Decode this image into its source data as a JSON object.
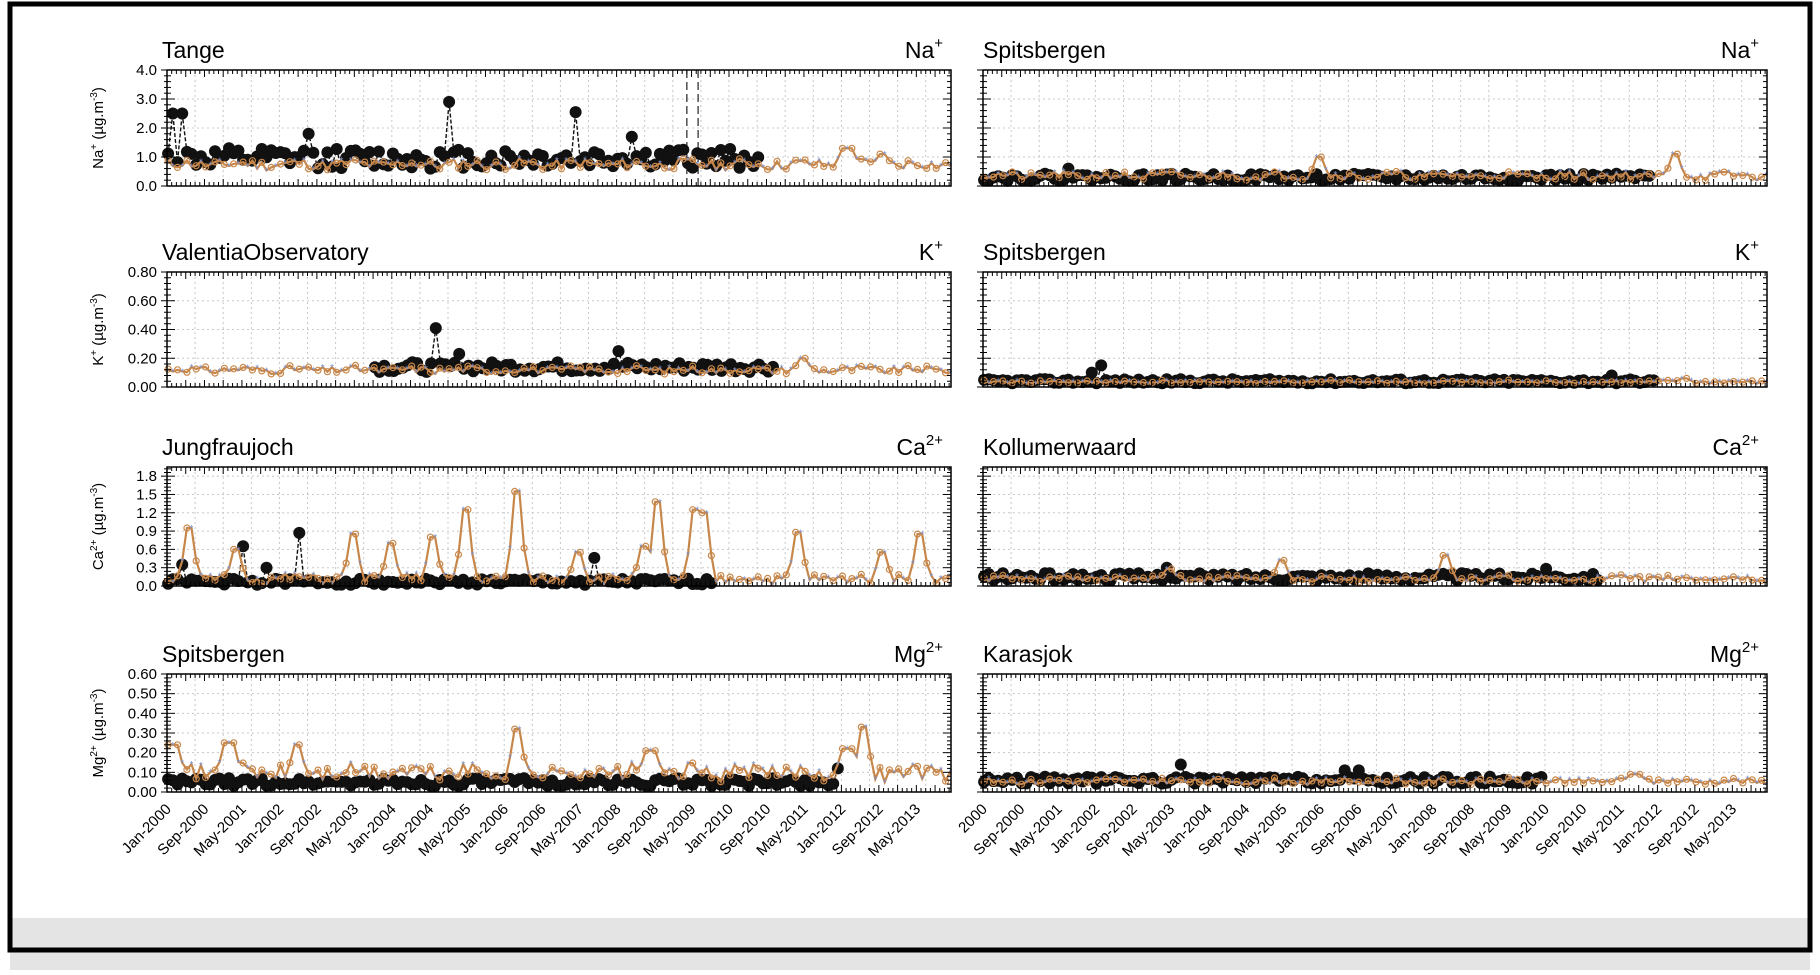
{
  "figure": {
    "x_tick_labels_left": [
      "Jan-2000",
      "Sep-2000",
      "May-2001",
      "Jan-2002",
      "Sep-2002",
      "May-2003",
      "Jan-2004",
      "Sep-2004",
      "May-2005",
      "Jan-2006",
      "Sep-2006",
      "May-2007",
      "Jan-2008",
      "Sep-2008",
      "May-2009",
      "Jan-2010",
      "Sep-2010",
      "May-2011",
      "Jan-2012",
      "Sep-2012",
      "May-2013"
    ],
    "x_tick_labels_right": [
      "2000",
      "Sep-2000",
      "May-2001",
      "Jan-2002",
      "Sep-2002",
      "May-2003",
      "Jan-2004",
      "Sep-2004",
      "May-2005",
      "Jan-2006",
      "Sep-2006",
      "May-2007",
      "Jan-2008",
      "Sep-2008",
      "May-2009",
      "Jan-2010",
      "Sep-2010",
      "May-2011",
      "Jan-2012",
      "Sep-2012",
      "May-2013"
    ],
    "colors": {
      "observed": "#111111",
      "model_line": "#c8874a",
      "model_marker": "#7b8fc9",
      "grid": "#c8c8c8"
    }
  },
  "chart_data": [
    {
      "type": "line",
      "panel": "r1c1",
      "station": "Tange",
      "species_main": "Na",
      "species_sup": "+",
      "ylabel_main": "Na",
      "ylabel_sup": "+",
      "ylabel_unit": " (µg.m",
      "ylabel_unit_sup": "-3",
      "ylabel_close": ")",
      "ylim": [
        0,
        4.0
      ],
      "yticks": [
        0,
        1.0,
        2.0,
        3.0,
        4.0
      ],
      "ytick_labels": [
        "0.0",
        "1.0",
        "2.0",
        "3.0",
        "4.0"
      ],
      "model": {
        "base": 0.75,
        "amp": 0.18,
        "seed": 11,
        "spikes": [
          [
            2012.1,
            1.3
          ],
          [
            2012.7,
            1.1
          ]
        ]
      },
      "observed": {
        "end": 2010.6,
        "base": 0.95,
        "amp": 0.35,
        "seed": 12,
        "spikes": [
          [
            2000.1,
            2.5
          ],
          [
            2000.3,
            2.5
          ],
          [
            2005.0,
            2.9
          ],
          [
            2007.3,
            2.55
          ],
          [
            2002.5,
            1.8
          ],
          [
            2008.3,
            1.7
          ]
        ]
      },
      "vlines": [
        2009.25,
        2009.45
      ]
    },
    {
      "type": "line",
      "panel": "r1c2",
      "station": "Spitsbergen",
      "species_main": "Na",
      "species_sup": "+",
      "ylabel_main": "",
      "ylabel_sup": "",
      "ylabel_unit": "",
      "ylabel_unit_sup": "",
      "ylabel_close": "",
      "ylim": [
        0,
        4.0
      ],
      "yticks": [
        0,
        1.0,
        2.0,
        3.0,
        4.0
      ],
      "ytick_labels": [],
      "model": {
        "base": 0.35,
        "amp": 0.14,
        "seed": 21,
        "spikes": [
          [
            2006.0,
            1.0
          ],
          [
            2012.3,
            1.1
          ]
        ]
      },
      "observed": {
        "end": 2011.9,
        "base": 0.3,
        "amp": 0.12,
        "seed": 22,
        "spikes": [
          [
            2001.5,
            0.6
          ]
        ]
      },
      "vlines": []
    },
    {
      "type": "line",
      "panel": "r2c1",
      "station": "ValentiaObservatory",
      "species_main": "K",
      "species_sup": "+",
      "ylabel_main": "K",
      "ylabel_sup": "+",
      "ylabel_unit": " (µg.m",
      "ylabel_unit_sup": "-3",
      "ylabel_close": ")",
      "ylim": [
        0,
        0.8
      ],
      "yticks": [
        0,
        0.2,
        0.4,
        0.6,
        0.8
      ],
      "ytick_labels": [
        "0.00",
        "0.20",
        "0.40",
        "0.60",
        "0.80"
      ],
      "model": {
        "base": 0.12,
        "amp": 0.025,
        "seed": 31,
        "spikes": [
          [
            2011.3,
            0.2
          ]
        ]
      },
      "observed": {
        "start": 2003.7,
        "end": 2010.8,
        "base": 0.14,
        "amp": 0.035,
        "seed": 32,
        "spikes": [
          [
            2004.8,
            0.41
          ],
          [
            2005.2,
            0.23
          ],
          [
            2008.0,
            0.25
          ]
        ]
      },
      "vlines": []
    },
    {
      "type": "line",
      "panel": "r2c2",
      "station": "Spitsbergen",
      "species_main": "K",
      "species_sup": "+",
      "ylabel_main": "",
      "ylabel_sup": "",
      "ylabel_unit": "",
      "ylabel_unit_sup": "",
      "ylabel_close": "",
      "ylim": [
        0,
        0.8
      ],
      "yticks": [
        0,
        0.2,
        0.4,
        0.6,
        0.8
      ],
      "ytick_labels": [],
      "model": {
        "base": 0.035,
        "amp": 0.012,
        "seed": 41,
        "spikes": [
          [
            2012.5,
            0.06
          ]
        ]
      },
      "observed": {
        "end": 2012.0,
        "base": 0.04,
        "amp": 0.015,
        "seed": 42,
        "spikes": [
          [
            2002.1,
            0.15
          ],
          [
            2001.9,
            0.1
          ],
          [
            2011.2,
            0.08
          ]
        ]
      },
      "vlines": []
    },
    {
      "type": "line",
      "panel": "r3c1",
      "station": "Jungfraujoch",
      "species_main": "Ca",
      "species_sup": "2+",
      "ylabel_main": "Ca",
      "ylabel_sup": "2+",
      "ylabel_unit": " (µg.m",
      "ylabel_unit_sup": "-3",
      "ylabel_close": ")",
      "ylim": [
        0,
        1.95
      ],
      "yticks": [
        0,
        0.3,
        0.6,
        0.9,
        1.2,
        1.5,
        1.8
      ],
      "ytick_labels": [
        "0.0",
        "0.3",
        "0.6",
        "0.9",
        "1.2",
        "1.5",
        "1.8"
      ],
      "model": {
        "base": 0.12,
        "amp": 0.08,
        "seed": 51,
        "spikes": [
          [
            2000.4,
            0.95
          ],
          [
            2001.2,
            0.6
          ],
          [
            2003.3,
            0.85
          ],
          [
            2004.0,
            0.7
          ],
          [
            2004.75,
            0.8
          ],
          [
            2005.3,
            1.25
          ],
          [
            2006.25,
            1.55
          ],
          [
            2007.3,
            0.55
          ],
          [
            2008.75,
            1.38
          ],
          [
            2008.5,
            0.65
          ],
          [
            2009.4,
            1.25
          ],
          [
            2009.55,
            1.2
          ],
          [
            2011.25,
            0.88
          ],
          [
            2012.7,
            0.55
          ],
          [
            2013.4,
            0.85
          ]
        ]
      },
      "observed": {
        "end": 2009.7,
        "base": 0.07,
        "amp": 0.05,
        "seed": 52,
        "spikes": [
          [
            2000.3,
            0.35
          ],
          [
            2001.35,
            0.65
          ],
          [
            2002.35,
            0.87
          ],
          [
            2007.6,
            0.46
          ],
          [
            2001.8,
            0.3
          ]
        ]
      },
      "vlines": []
    },
    {
      "type": "line",
      "panel": "r3c2",
      "station": "Kollumerwaard",
      "species_main": "Ca",
      "species_sup": "2+",
      "ylabel_main": "",
      "ylabel_sup": "",
      "ylabel_unit": "",
      "ylabel_unit_sup": "",
      "ylabel_close": "",
      "ylim": [
        0,
        1.95
      ],
      "yticks": [
        0,
        0.3,
        0.6,
        0.9,
        1.2,
        1.5,
        1.8
      ],
      "ytick_labels": [],
      "model": {
        "base": 0.12,
        "amp": 0.05,
        "seed": 61,
        "spikes": [
          [
            2005.3,
            0.42
          ],
          [
            2008.2,
            0.5
          ],
          [
            2003.3,
            0.28
          ]
        ]
      },
      "observed": {
        "end": 2011.0,
        "base": 0.15,
        "amp": 0.06,
        "seed": 62,
        "spikes": [
          [
            2003.3,
            0.3
          ],
          [
            2010.0,
            0.28
          ]
        ]
      },
      "vlines": []
    },
    {
      "type": "line",
      "panel": "r4c1",
      "station": "Spitsbergen",
      "species_main": "Mg",
      "species_sup": "2+",
      "ylabel_main": "Mg",
      "ylabel_sup": "2+",
      "ylabel_unit": " (µg.m",
      "ylabel_unit_sup": "-3",
      "ylabel_close": ")",
      "ylim": [
        0,
        0.6
      ],
      "yticks": [
        0,
        0.1,
        0.2,
        0.3,
        0.4,
        0.5,
        0.6
      ],
      "ytick_labels": [
        "0.00",
        "0.10",
        "0.20",
        "0.30",
        "0.40",
        "0.50",
        "0.60"
      ],
      "model": {
        "base": 0.1,
        "amp": 0.04,
        "seed": 71,
        "spikes": [
          [
            2001.1,
            0.25
          ],
          [
            2002.3,
            0.24
          ],
          [
            2006.2,
            0.32
          ],
          [
            2008.6,
            0.21
          ],
          [
            2012.4,
            0.33
          ],
          [
            2012.1,
            0.22
          ],
          [
            2000.1,
            0.24
          ]
        ]
      },
      "observed": {
        "end": 2012.0,
        "base": 0.05,
        "amp": 0.02,
        "seed": 72,
        "spikes": [
          [
            2011.9,
            0.12
          ],
          [
            2000.1,
            0.06
          ]
        ]
      },
      "vlines": []
    },
    {
      "type": "line",
      "panel": "r4c2",
      "station": "Karasjok",
      "species_main": "Mg",
      "species_sup": "2+",
      "ylabel_main": "",
      "ylabel_sup": "",
      "ylabel_unit": "",
      "ylabel_unit_sup": "",
      "ylabel_close": "",
      "ylim": [
        0,
        0.6
      ],
      "yticks": [
        0,
        0.1,
        0.2,
        0.3,
        0.4,
        0.5,
        0.6
      ],
      "ytick_labels": [],
      "model": {
        "base": 0.055,
        "amp": 0.015,
        "seed": 81,
        "spikes": [
          [
            2011.6,
            0.09
          ]
        ]
      },
      "observed": {
        "end": 2010.0,
        "base": 0.06,
        "amp": 0.018,
        "seed": 82,
        "spikes": [
          [
            2003.5,
            0.14
          ],
          [
            2006.4,
            0.11
          ],
          [
            2006.7,
            0.11
          ]
        ]
      },
      "vlines": []
    }
  ]
}
